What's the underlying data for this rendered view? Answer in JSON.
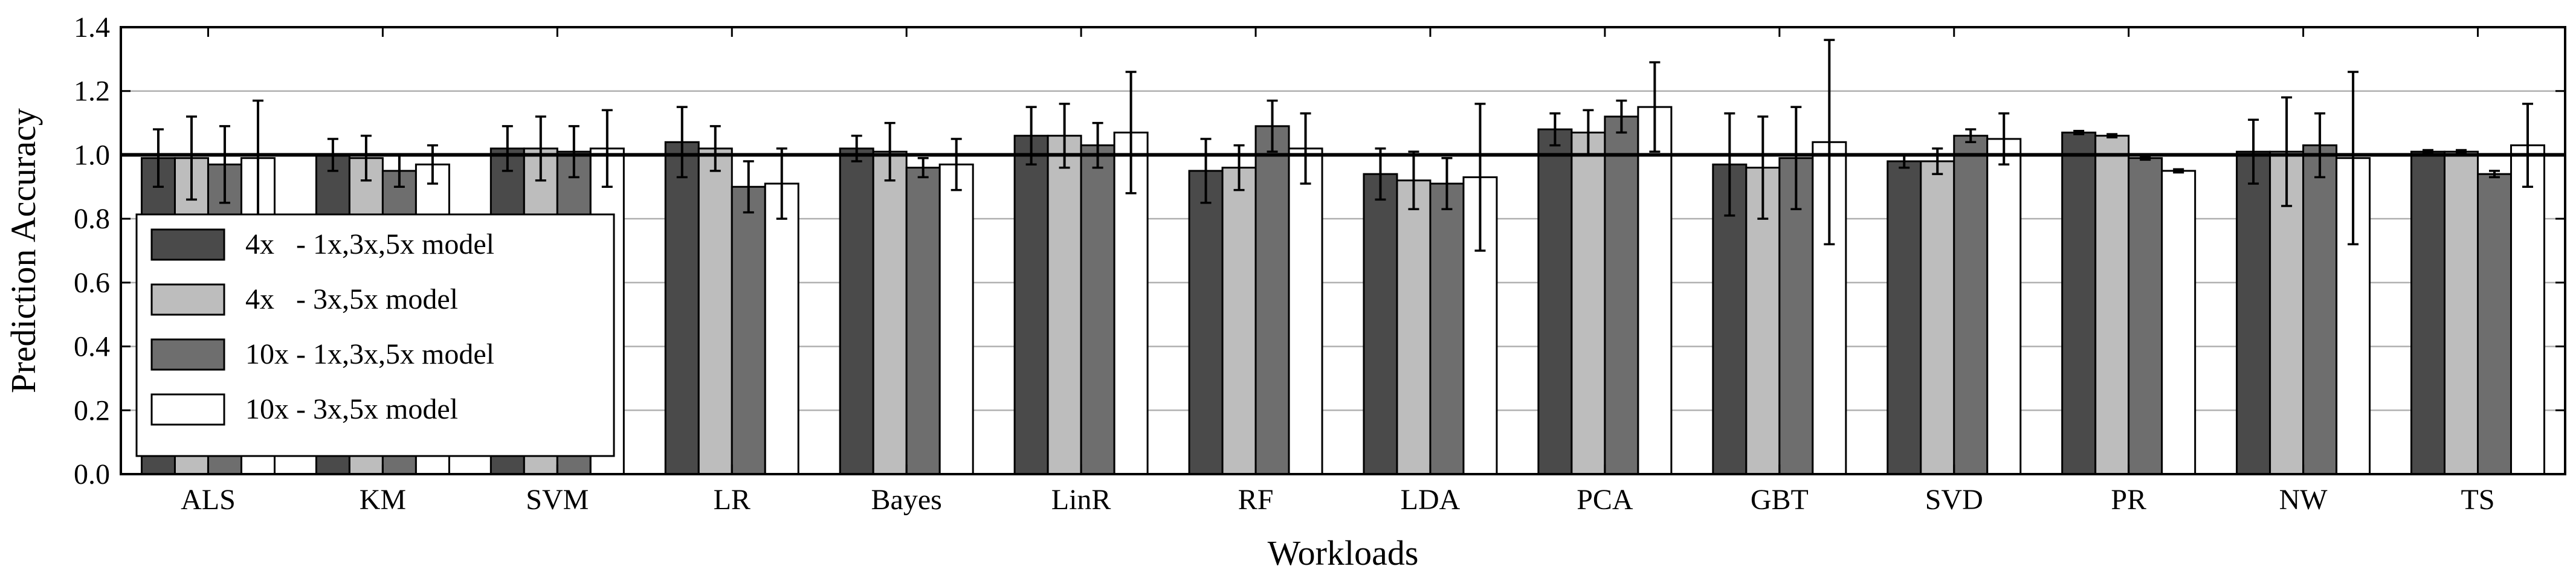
{
  "chart_data": {
    "type": "bar",
    "xlabel": "Workloads",
    "ylabel": "Prediction Accuracy",
    "ylim": [
      0.0,
      1.4
    ],
    "yticks": [
      "0.0",
      "0.2",
      "0.4",
      "0.6",
      "0.8",
      "1.0",
      "1.2",
      "1.4"
    ],
    "ytick_values": [
      0.0,
      0.2,
      0.4,
      0.6,
      0.8,
      1.0,
      1.2,
      1.4
    ],
    "grid": true,
    "reference_line": 1.0,
    "legend_position": "left",
    "categories": [
      "ALS",
      "KM",
      "SVM",
      "LR",
      "Bayes",
      "LinR",
      "RF",
      "LDA",
      "PCA",
      "GBT",
      "SVD",
      "PR",
      "NW",
      "TS"
    ],
    "series": [
      {
        "name": "4x   - 1x,3x,5x model",
        "color": "#4a4a4a",
        "values": [
          0.99,
          1.0,
          1.02,
          1.04,
          1.02,
          1.06,
          0.95,
          0.94,
          1.08,
          0.97,
          0.98,
          1.07,
          1.01,
          1.01
        ],
        "errors": [
          0.09,
          0.05,
          0.07,
          0.11,
          0.04,
          0.09,
          0.1,
          0.08,
          0.05,
          0.16,
          0.02,
          0.005,
          0.1,
          0.005
        ]
      },
      {
        "name": "4x   - 3x,5x model",
        "color": "#bdbdbd",
        "values": [
          0.99,
          0.99,
          1.02,
          1.02,
          1.01,
          1.06,
          0.96,
          0.92,
          1.07,
          0.96,
          0.98,
          1.06,
          1.01,
          1.01
        ],
        "errors": [
          0.13,
          0.07,
          0.1,
          0.07,
          0.09,
          0.1,
          0.07,
          0.09,
          0.07,
          0.16,
          0.04,
          0.005,
          0.17,
          0.005
        ]
      },
      {
        "name": "10x - 1x,3x,5x model",
        "color": "#6e6e6e",
        "values": [
          0.97,
          0.95,
          1.01,
          0.9,
          0.96,
          1.03,
          1.09,
          0.91,
          1.12,
          0.99,
          1.06,
          0.99,
          1.03,
          0.94
        ],
        "errors": [
          0.12,
          0.05,
          0.08,
          0.08,
          0.03,
          0.07,
          0.08,
          0.08,
          0.05,
          0.16,
          0.02,
          0.005,
          0.1,
          0.01
        ]
      },
      {
        "name": "10x - 3x,5x model",
        "color": "#ffffff",
        "values": [
          0.99,
          0.97,
          1.02,
          0.91,
          0.97,
          1.07,
          1.02,
          0.93,
          1.15,
          1.04,
          1.05,
          0.95,
          0.99,
          1.03
        ],
        "errors": [
          0.18,
          0.06,
          0.12,
          0.11,
          0.08,
          0.19,
          0.11,
          0.23,
          0.14,
          0.32,
          0.08,
          0.005,
          0.27,
          0.13
        ]
      }
    ]
  }
}
